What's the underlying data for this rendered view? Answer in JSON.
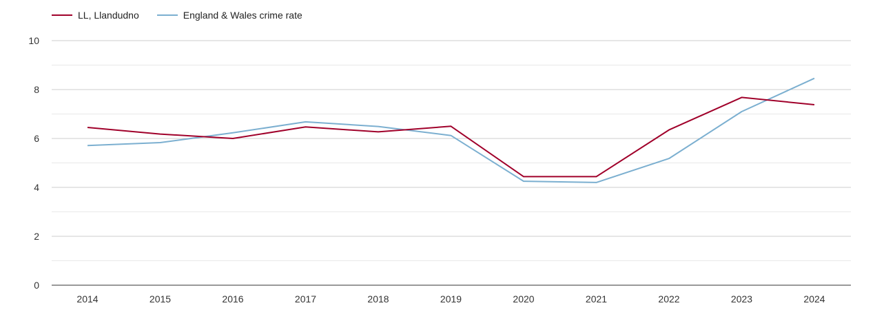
{
  "legend": {
    "series1": "LL, Llandudno",
    "series2": "England & Wales crime rate"
  },
  "colors": {
    "series1": "#a0002a",
    "series2": "#7bafd0",
    "grid_major": "#cccccc",
    "grid_minor": "#e8e8e8",
    "axis": "#333333"
  },
  "chart_data": {
    "type": "line",
    "x": [
      "2014",
      "2015",
      "2016",
      "2017",
      "2018",
      "2019",
      "2020",
      "2021",
      "2022",
      "2023",
      "2024"
    ],
    "ylim": [
      0,
      10
    ],
    "yticks": [
      0,
      2,
      4,
      6,
      8,
      10
    ],
    "grid": true,
    "legend_position": "top-left",
    "series": [
      {
        "name": "LL, Llandudno",
        "values": [
          6.45,
          6.18,
          6.0,
          6.47,
          6.27,
          6.5,
          4.44,
          4.44,
          6.35,
          7.68,
          7.38
        ]
      },
      {
        "name": "England & Wales crime rate",
        "values": [
          5.71,
          5.83,
          6.23,
          6.68,
          6.49,
          6.12,
          4.25,
          4.2,
          5.18,
          7.1,
          8.46
        ]
      }
    ]
  }
}
